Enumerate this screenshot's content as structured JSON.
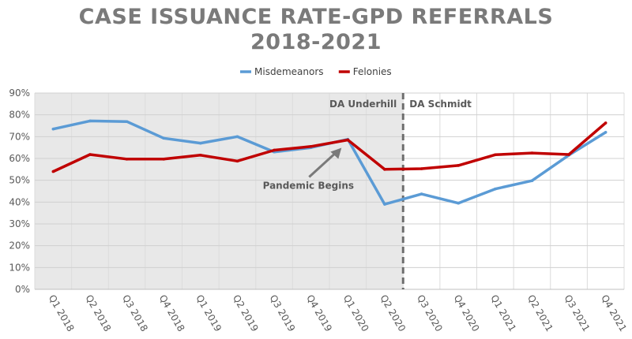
{
  "chart_data": {
    "type": "line",
    "title": "CASE ISSUANCE RATE-GPD REFERRALS",
    "subtitle": "2018-2021",
    "categories": [
      "Q1 2018",
      "Q2 2018",
      "Q3 2018",
      "Q4 2018",
      "Q1 2019",
      "Q2 2019",
      "Q3 2019",
      "Q4 2019",
      "Q1 2020",
      "Q2 2020",
      "Q3 2020",
      "Q4 2020",
      "Q1 2021",
      "Q2 2021",
      "Q3 2021",
      "Q4 2021"
    ],
    "series": [
      {
        "name": "Misdemeanors",
        "color": "#5b9bd5",
        "values": [
          73.5,
          77.2,
          76.9,
          69.3,
          67.0,
          70.0,
          63.0,
          65.0,
          68.8,
          39.0,
          43.7,
          39.5,
          46.0,
          49.8,
          61.5,
          72.0
        ]
      },
      {
        "name": "Felonies",
        "color": "#c00000",
        "values": [
          54.0,
          61.8,
          59.7,
          59.7,
          61.5,
          58.8,
          63.8,
          65.5,
          68.5,
          55.0,
          55.3,
          56.8,
          61.7,
          62.5,
          61.8,
          76.3
        ]
      }
    ],
    "ylim": [
      0,
      90
    ],
    "yticks": [
      "0%",
      "10%",
      "20%",
      "30%",
      "40%",
      "50%",
      "60%",
      "70%",
      "80%",
      "90%"
    ],
    "y_tick_values": [
      0,
      10,
      20,
      30,
      40,
      50,
      60,
      70,
      80,
      90
    ],
    "grid": true,
    "legend_position": "top",
    "shaded_period": {
      "from_category": "Q1 2018",
      "to_category": "Q2 2020",
      "color": "#e8e8e8"
    },
    "divider": {
      "between": [
        "Q2 2020",
        "Q3 2020"
      ],
      "left_label": "DA Underhill",
      "right_label": "DA Schmidt"
    },
    "annotation": {
      "text": "Pandemic Begins",
      "points_to": "Q1 2020"
    }
  }
}
